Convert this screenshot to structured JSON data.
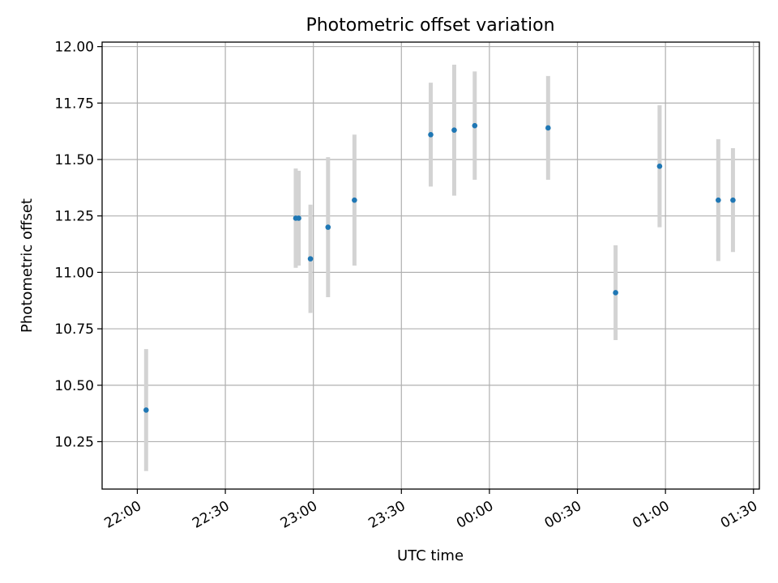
{
  "chart_data": {
    "type": "scatter",
    "title": "Photometric offset variation",
    "xlabel": "UTC time",
    "ylabel": "Photometric offset",
    "xlim": [
      "21:48",
      "01:32"
    ],
    "ylim": [
      10.04,
      12.02
    ],
    "xticks": [
      "22:00",
      "22:30",
      "23:00",
      "23:30",
      "00:00",
      "00:30",
      "01:00",
      "01:30"
    ],
    "yticks": [
      "10.25",
      "10.50",
      "10.75",
      "11.00",
      "11.25",
      "11.50",
      "11.75",
      "12.00"
    ],
    "grid": true,
    "errorbar_color": "#d3d3d3",
    "marker_color": "#1f77b4",
    "points": [
      {
        "x": "22:03",
        "y": 10.39,
        "yerr": 0.27
      },
      {
        "x": "22:54",
        "y": 11.24,
        "yerr": 0.22
      },
      {
        "x": "22:55",
        "y": 11.24,
        "yerr": 0.21
      },
      {
        "x": "22:59",
        "y": 11.06,
        "yerr": 0.24
      },
      {
        "x": "23:05",
        "y": 11.2,
        "yerr": 0.31
      },
      {
        "x": "23:14",
        "y": 11.32,
        "yerr": 0.29
      },
      {
        "x": "23:40",
        "y": 11.61,
        "yerr": 0.23
      },
      {
        "x": "23:48",
        "y": 11.63,
        "yerr": 0.29
      },
      {
        "x": "23:55",
        "y": 11.65,
        "yerr": 0.24
      },
      {
        "x": "00:20",
        "y": 11.64,
        "yerr": 0.23
      },
      {
        "x": "00:43",
        "y": 10.91,
        "yerr": 0.21
      },
      {
        "x": "00:58",
        "y": 11.47,
        "yerr": 0.27
      },
      {
        "x": "01:18",
        "y": 11.32,
        "yerr": 0.27
      },
      {
        "x": "01:23",
        "y": 11.32,
        "yerr": 0.23
      }
    ]
  }
}
